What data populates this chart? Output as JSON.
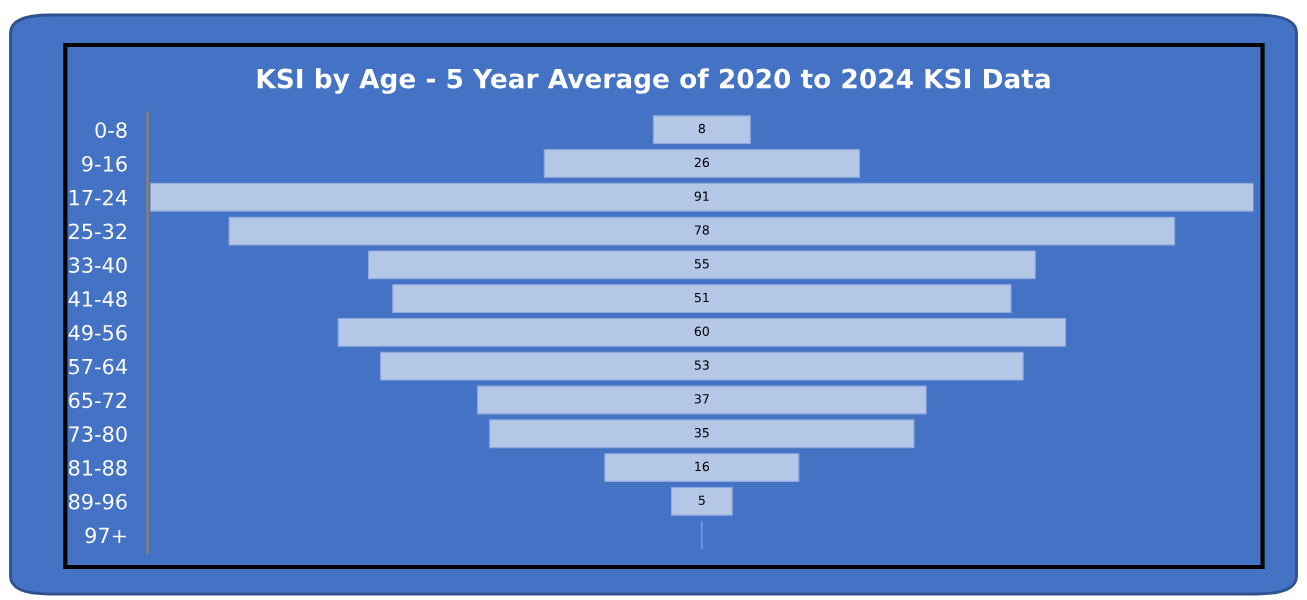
{
  "chart_data": {
    "type": "other",
    "title": "KSI by Age - 5 Year Average of 2020 to 2024 KSI Data",
    "categories": [
      "0-8",
      "9-16",
      "17-24",
      "25-32",
      "33-40",
      "41-48",
      "49-56",
      "57-64",
      "65-72",
      "73-80",
      "81-88",
      "89-96",
      "97+"
    ],
    "values": [
      8,
      26,
      91,
      78,
      55,
      51,
      60,
      53,
      37,
      35,
      16,
      5,
      null
    ],
    "value_labels": [
      "8",
      "26",
      "91",
      "78",
      "55",
      "51",
      "60",
      "53",
      "37",
      "35",
      "16",
      "5",
      null
    ],
    "color": "#b4c7e7",
    "legend": false
  }
}
